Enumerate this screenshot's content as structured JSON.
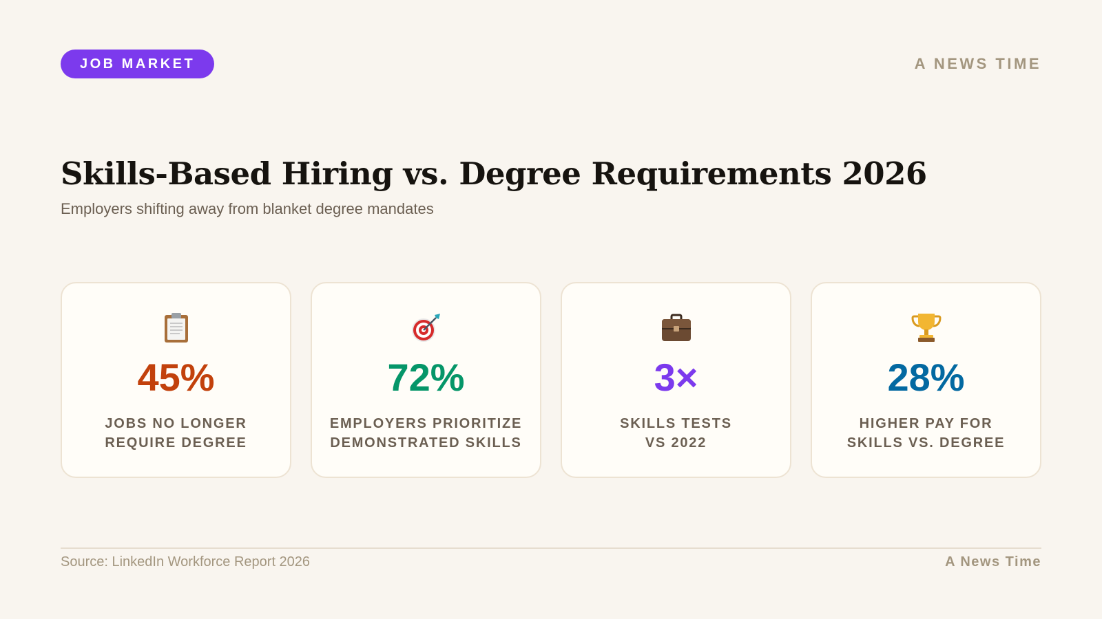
{
  "tag": "JOB MARKET",
  "brand_top": "A NEWS TIME",
  "title": "Skills-Based Hiring vs. Degree Requirements 2026",
  "subtitle": "Employers shifting away from blanket degree mandates",
  "cards": [
    {
      "icon": "clipboard-icon",
      "value": "45%",
      "label_line1": "JOBS NO LONGER",
      "label_line2": "REQUIRE DEGREE",
      "color": "#c2410c"
    },
    {
      "icon": "target-icon",
      "value": "72%",
      "label_line1": "EMPLOYERS PRIORITIZE",
      "label_line2": "DEMONSTRATED SKILLS",
      "color": "#059669"
    },
    {
      "icon": "briefcase-icon",
      "value": "3×",
      "label_line1": "SKILLS TESTS",
      "label_line2": "VS 2022",
      "color": "#7c3aed"
    },
    {
      "icon": "trophy-icon",
      "value": "28%",
      "label_line1": "HIGHER PAY FOR",
      "label_line2": "SKILLS VS. DEGREE",
      "color": "#0369a1"
    }
  ],
  "footer": {
    "source": "Source: LinkedIn Workforce Report 2026",
    "brand": "A News Time"
  },
  "colors": {
    "background": "#f9f5ef",
    "tag_background": "#7c3aed",
    "card_background": "#fffdf8",
    "muted_text": "#a3967f"
  }
}
